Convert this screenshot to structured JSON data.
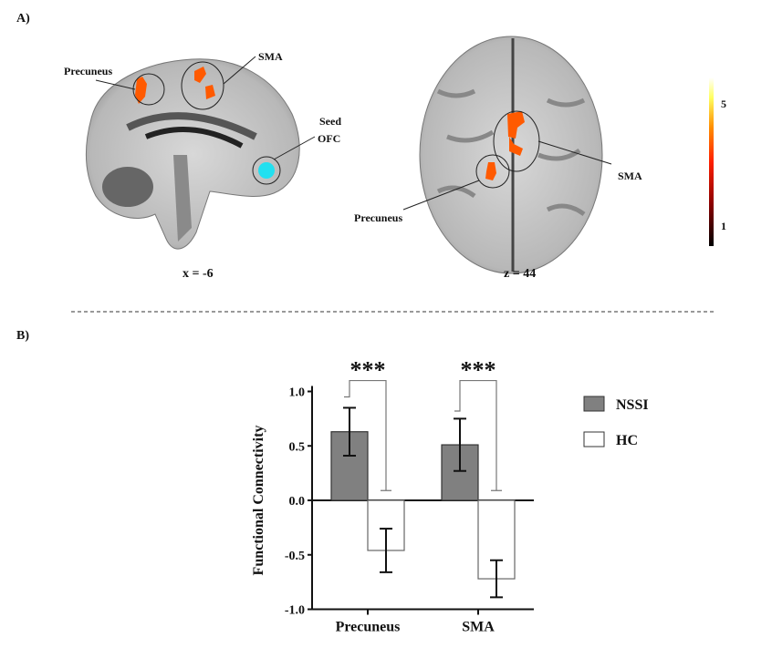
{
  "panel_a": {
    "label": "A)",
    "sagittal": {
      "caption": "x = -6",
      "labels": {
        "precuneus": "Precuneus",
        "sma": "SMA",
        "seed_line1": "Seed",
        "seed_line2": "OFC"
      }
    },
    "axial": {
      "caption": "z = 44",
      "labels": {
        "precuneus": "Precuneus",
        "sma": "SMA"
      }
    },
    "colorbar": {
      "max_label": "5",
      "min_label": "1",
      "colors": [
        "#000000",
        "#8b0000",
        "#ff2000",
        "#ff8c00",
        "#ffff60",
        "#ffffff"
      ]
    },
    "colors": {
      "activation": "#ff5a00",
      "seed": "#22e0f0"
    }
  },
  "panel_b": {
    "label": "B)"
  },
  "chart_data": {
    "type": "bar",
    "categories": [
      "Precuneus",
      "SMA"
    ],
    "series": [
      {
        "name": "NSSI",
        "values": [
          0.63,
          0.51
        ],
        "errors": [
          0.22,
          0.24
        ],
        "color": "#808080"
      },
      {
        "name": "HC",
        "values": [
          -0.46,
          -0.72
        ],
        "errors": [
          0.2,
          0.17
        ],
        "color": "#ffffff"
      }
    ],
    "ylabel": "Functional Connectivity",
    "ylim": [
      -1.0,
      1.0
    ],
    "yticks": [
      "-1.0",
      "-0.5",
      "0.0",
      "0.5",
      "1.0"
    ],
    "significance": [
      {
        "category": "Precuneus",
        "label": "***"
      },
      {
        "category": "SMA",
        "label": "***"
      }
    ],
    "legend_position": "right",
    "grid": false
  }
}
